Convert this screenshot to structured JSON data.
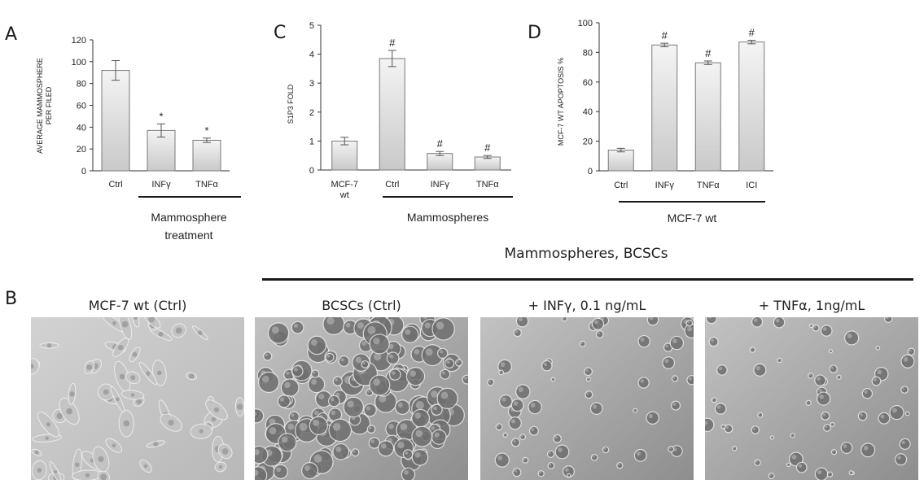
{
  "panel_letters": {
    "a": "A",
    "b": "B",
    "c": "C",
    "d": "D"
  },
  "chart_data": [
    {
      "type": "bar",
      "panel": "A",
      "ylabel_lines": [
        "AVERAGE MAMMOSPHERE",
        "PER FILED"
      ],
      "categories": [
        "Ctrl",
        "INFγ",
        "TNFα"
      ],
      "values": [
        92,
        37,
        28
      ],
      "errors": [
        9,
        6,
        2
      ],
      "significance": [
        "",
        "*",
        "*"
      ],
      "ylim": [
        0,
        120
      ],
      "yticks": [
        0,
        20,
        40,
        60,
        80,
        100,
        120
      ],
      "group_label_lines": [
        "Mammosphere",
        "treatment"
      ],
      "grid": false
    },
    {
      "type": "bar",
      "panel": "C",
      "ylabel_lines": [
        "S1P3 FOLD"
      ],
      "categories": [
        "MCF-7 wt",
        "Ctrl",
        "INFγ",
        "TNFα"
      ],
      "values": [
        1.0,
        3.85,
        0.57,
        0.45
      ],
      "errors": [
        0.13,
        0.28,
        0.07,
        0.05
      ],
      "significance": [
        "",
        "#",
        "#",
        "#"
      ],
      "ylim": [
        0,
        5
      ],
      "yticks": [
        0,
        1,
        2,
        3,
        4,
        5
      ],
      "group_label_lines": [
        "Mammospheres"
      ],
      "grid": false
    },
    {
      "type": "bar",
      "panel": "D",
      "ylabel_lines": [
        "MCF-7 WT APOPTOSIS %"
      ],
      "categories": [
        "Ctrl",
        "INFγ",
        "TNFα",
        "ICI"
      ],
      "values": [
        14,
        85,
        73,
        87
      ],
      "errors": [
        1.2,
        1.2,
        1.2,
        1.2
      ],
      "significance": [
        "",
        "#",
        "#",
        "#"
      ],
      "ylim": [
        0,
        100
      ],
      "yticks": [
        0,
        20,
        40,
        60,
        80,
        100
      ],
      "group_label_lines": [
        "MCF-7 wt"
      ],
      "grid": false
    }
  ],
  "panel_b": {
    "header": "Mammospheres,  BCSCs",
    "images": [
      {
        "title": "MCF-7 wt  (Ctrl)",
        "kind": "flat-cells"
      },
      {
        "title": "BCSCs (Ctrl)",
        "kind": "dense-spheres"
      },
      {
        "title": "+ INFγ, 0.1 ng/mL",
        "kind": "sparse-spheres"
      },
      {
        "title": "+ TNFα, 1ng/mL",
        "kind": "sparse-spheres"
      }
    ]
  },
  "colors": {
    "bar_top": "#f4f4f4",
    "bar_bottom": "#c9c9c9",
    "bar_stroke": "#7a7a7a",
    "axis": "#333333"
  }
}
